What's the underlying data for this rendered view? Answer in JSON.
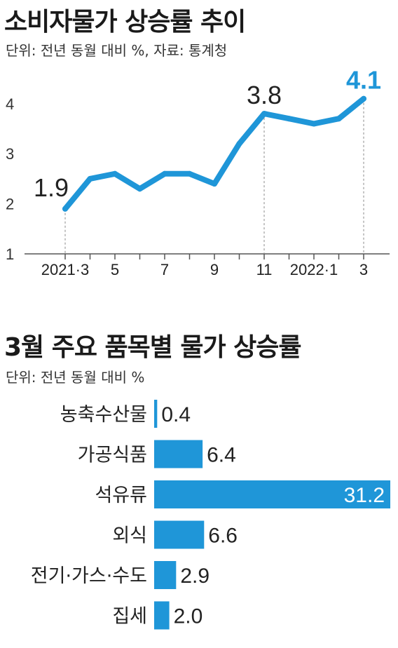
{
  "line_chart": {
    "title": "소비자물가 상승률 추이",
    "subtitle": "단위: 전년 동월 대비 %, 자료: 통계청"
  },
  "bar_chart": {
    "title": "3월 주요 품목별 물가 상승률",
    "subtitle": "단위: 전년 동월 대비 %"
  },
  "colors": {
    "accent": "#1f96d8",
    "axis": "#555555",
    "guide": "#888888"
  },
  "chart_data": [
    {
      "type": "line",
      "title": "소비자물가 상승률 추이",
      "x": [
        "2021.3",
        "2021.4",
        "2021.5",
        "2021.6",
        "2021.7",
        "2021.8",
        "2021.9",
        "2021.10",
        "2021.11",
        "2021.12",
        "2022.1",
        "2022.2",
        "2022.3"
      ],
      "x_tick_labels": [
        {
          "index": 0,
          "label": "2021·3"
        },
        {
          "index": 2,
          "label": "5"
        },
        {
          "index": 4,
          "label": "7"
        },
        {
          "index": 6,
          "label": "9"
        },
        {
          "index": 8,
          "label": "11"
        },
        {
          "index": 10,
          "label": "2022·1"
        },
        {
          "index": 12,
          "label": "3"
        }
      ],
      "series": [
        {
          "values": [
            1.9,
            2.5,
            2.6,
            2.3,
            2.6,
            2.6,
            2.4,
            3.2,
            3.8,
            3.7,
            3.6,
            3.7,
            4.1
          ]
        }
      ],
      "data_labels": [
        {
          "index": 0,
          "label": "1.9"
        },
        {
          "index": 8,
          "label": "3.8"
        },
        {
          "index": 12,
          "label": "4.1"
        }
      ],
      "y_ticks": [
        "1",
        "2",
        "3",
        "4"
      ],
      "ylim": [
        1,
        4.6
      ],
      "grid": false
    },
    {
      "type": "bar",
      "orientation": "horizontal",
      "title": "3월 주요 품목별 물가 상승률",
      "categories": [
        "농축수산물",
        "가공식품",
        "석유류",
        "외식",
        "전기·가스·수도",
        "집세"
      ],
      "values": [
        0.4,
        6.4,
        31.2,
        6.6,
        2.9,
        2.0
      ],
      "value_labels": [
        "0.4",
        "6.4",
        "31.2",
        "6.6",
        "2.9",
        "2.0"
      ],
      "xlim": [
        0,
        31.2
      ],
      "grid": false
    }
  ]
}
